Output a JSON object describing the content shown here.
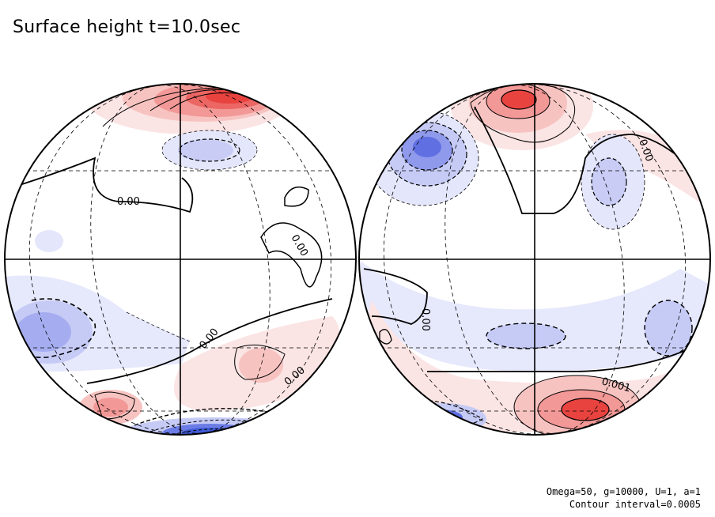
{
  "title": "Surface height t=10.0sec",
  "contour_labels": {
    "left_upper": "0.00",
    "left_middle": "0.00",
    "left_lower_a": "0.00",
    "left_lower_b": "0.00",
    "right_upper": "0.00",
    "right_middle": "0.00",
    "right_lower": "0.001"
  },
  "footer": {
    "parameters": "Omega=50, g=10000, U=1, a=1",
    "contour_interval": "Contour interval=0.0005"
  },
  "colors": {
    "positive": "#e8433f",
    "negative": "#3f5bd8",
    "outline": "#000000"
  }
}
